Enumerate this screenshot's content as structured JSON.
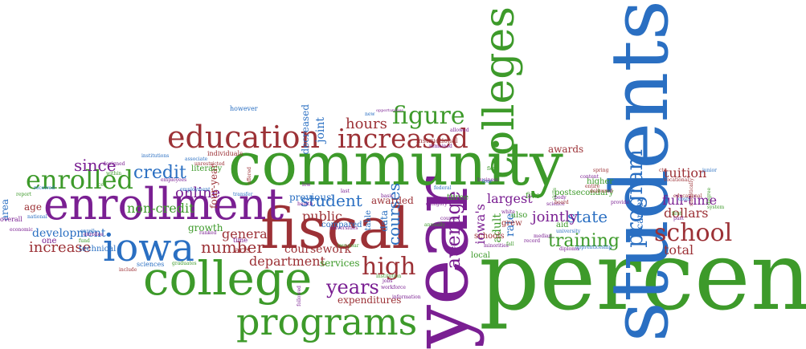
{
  "palette": {
    "green": "#3d9a2a",
    "purple": "#7a1f92",
    "blue": "#2a6fc2",
    "red": "#9c3136",
    "light_green": "#6bb04a",
    "light_purple": "#a05cb8",
    "light_blue": "#5e9bd6",
    "light_red": "#c06a6e"
  },
  "words": [
    {
      "text": "percent",
      "color": "green"
    },
    {
      "text": "students",
      "color": "blue"
    },
    {
      "text": "year",
      "color": "purple"
    },
    {
      "text": "community",
      "color": "green"
    },
    {
      "text": "fiscal",
      "color": "red"
    },
    {
      "text": "enrollment",
      "color": "purple"
    },
    {
      "text": "college",
      "color": "green"
    },
    {
      "text": "colleges",
      "color": "green"
    },
    {
      "text": "iowa",
      "color": "blue"
    },
    {
      "text": "programs",
      "color": "green"
    },
    {
      "text": "education",
      "color": "red"
    },
    {
      "text": "increased",
      "color": "red"
    },
    {
      "text": "enrolled",
      "color": "green"
    },
    {
      "text": "figure",
      "color": "green"
    },
    {
      "text": "school",
      "color": "red"
    },
    {
      "text": "high",
      "color": "red"
    },
    {
      "text": "program",
      "color": "blue"
    },
    {
      "text": "years",
      "color": "purple"
    },
    {
      "text": "average",
      "color": "purple"
    },
    {
      "text": "credit",
      "color": "blue"
    },
    {
      "text": "training",
      "color": "green"
    },
    {
      "text": "since",
      "color": "purple"
    },
    {
      "text": "student",
      "color": "blue"
    },
    {
      "text": "state",
      "color": "blue"
    },
    {
      "text": "number",
      "color": "red"
    },
    {
      "text": "hours",
      "color": "red"
    },
    {
      "text": "increase",
      "color": "red"
    },
    {
      "text": "online",
      "color": "purple"
    },
    {
      "text": "courses",
      "color": "blue"
    },
    {
      "text": "jointly",
      "color": "purple"
    },
    {
      "text": "department",
      "color": "red"
    },
    {
      "text": "public",
      "color": "red"
    },
    {
      "text": "dollars",
      "color": "red"
    },
    {
      "text": "total",
      "color": "red"
    },
    {
      "text": "tuition",
      "color": "red"
    },
    {
      "text": "full-time",
      "color": "purple"
    },
    {
      "text": "career",
      "color": "blue"
    },
    {
      "text": "joint",
      "color": "blue"
    },
    {
      "text": "largest",
      "color": "purple"
    },
    {
      "text": "iowa's",
      "color": "purple"
    },
    {
      "text": "rate",
      "color": "blue"
    },
    {
      "text": "adult",
      "color": "green"
    },
    {
      "text": "non-credit",
      "color": "green"
    },
    {
      "text": "general",
      "color": "red"
    },
    {
      "text": "development",
      "color": "blue"
    },
    {
      "text": "age",
      "color": "red"
    },
    {
      "text": "growth",
      "color": "green"
    },
    {
      "text": "decreased",
      "color": "blue"
    },
    {
      "text": "coursework",
      "color": "red"
    },
    {
      "text": "previous",
      "color": "blue"
    },
    {
      "text": "awarded",
      "color": "red"
    },
    {
      "text": "compared",
      "color": "blue"
    },
    {
      "text": "services",
      "color": "green"
    },
    {
      "text": "expenditures",
      "color": "red"
    },
    {
      "text": "awards",
      "color": "red"
    },
    {
      "text": "four-year",
      "color": "red"
    },
    {
      "text": "postsecondary",
      "color": "green"
    },
    {
      "text": "schools",
      "color": "red"
    },
    {
      "text": "technical",
      "color": "blue"
    },
    {
      "text": "literacy",
      "color": "green"
    },
    {
      "text": "however",
      "color": "blue"
    },
    {
      "text": "data",
      "color": "blue"
    },
    {
      "text": "table",
      "color": "blue"
    },
    {
      "text": "area",
      "color": "blue"
    },
    {
      "text": "one",
      "color": "purple"
    },
    {
      "text": "arts",
      "color": "red"
    },
    {
      "text": "time",
      "color": "purple"
    },
    {
      "text": "per",
      "color": "purple"
    },
    {
      "text": "also",
      "color": "green"
    },
    {
      "text": "grew",
      "color": "red"
    },
    {
      "text": "aid",
      "color": "green"
    },
    {
      "text": "local",
      "color": "green"
    },
    {
      "text": "three",
      "color": "green"
    },
    {
      "text": "higher",
      "color": "green"
    },
    {
      "text": "five",
      "color": "green"
    },
    {
      "text": "sciences",
      "color": "blue"
    },
    {
      "text": "overall",
      "color": "purple"
    },
    {
      "text": "employees",
      "color": "purple"
    },
    {
      "text": "employment",
      "color": "blue"
    },
    {
      "text": "universities",
      "color": "purple"
    },
    {
      "text": "institutions",
      "color": "blue"
    },
    {
      "text": "instructional",
      "color": "red"
    },
    {
      "text": "vocational",
      "color": "red"
    },
    {
      "text": "annually",
      "color": "green"
    },
    {
      "text": "national",
      "color": "blue"
    },
    {
      "text": "report",
      "color": "green"
    },
    {
      "text": "fund",
      "color": "green"
    },
    {
      "text": "enroll",
      "color": "blue"
    },
    {
      "text": "designed",
      "color": "purple"
    },
    {
      "text": "within",
      "color": "green"
    },
    {
      "text": "include",
      "color": "red"
    },
    {
      "text": "science",
      "color": "purple"
    },
    {
      "text": "university",
      "color": "blue"
    },
    {
      "text": "median",
      "color": "purple"
    },
    {
      "text": "federal",
      "color": "blue"
    },
    {
      "text": "skills",
      "color": "green"
    },
    {
      "text": "jobs",
      "color": "purple"
    },
    {
      "text": "workforce",
      "color": "purple"
    },
    {
      "text": "information",
      "color": "purple"
    },
    {
      "text": "followed",
      "color": "purple"
    },
    {
      "text": "institution",
      "color": "green"
    },
    {
      "text": "two-year",
      "color": "green"
    },
    {
      "text": "individuals",
      "color": "red"
    },
    {
      "text": "cte",
      "color": "red"
    },
    {
      "text": "junior",
      "color": "blue"
    },
    {
      "text": "delivered",
      "color": "red"
    },
    {
      "text": "apprenticeship",
      "color": "blue"
    },
    {
      "text": "remained",
      "color": "purple"
    },
    {
      "text": "minorities",
      "color": "purple"
    },
    {
      "text": "degree",
      "color": "green"
    },
    {
      "text": "system",
      "color": "green"
    },
    {
      "text": "diploma",
      "color": "purple"
    },
    {
      "text": "allowed",
      "color": "purple"
    },
    {
      "text": "business",
      "color": "purple"
    },
    {
      "text": "last",
      "color": "purple"
    },
    {
      "text": "category",
      "color": "purple"
    },
    {
      "text": "course",
      "color": "purple"
    },
    {
      "text": "offered",
      "color": "red"
    },
    {
      "text": "transfer",
      "color": "blue"
    },
    {
      "text": "associate",
      "color": "blue"
    },
    {
      "text": "unrestricted",
      "color": "red"
    },
    {
      "text": "enrollee",
      "color": "purple"
    },
    {
      "text": "economic",
      "color": "purple"
    },
    {
      "text": "received",
      "color": "blue"
    },
    {
      "text": "new",
      "color": "blue"
    },
    {
      "text": "ranked",
      "color": "purple"
    },
    {
      "text": "four",
      "color": "blue"
    },
    {
      "text": "entire",
      "color": "red"
    },
    {
      "text": "past",
      "color": "purple"
    },
    {
      "text": "costs",
      "color": "blue"
    },
    {
      "text": "first",
      "color": "green"
    },
    {
      "text": "body",
      "color": "purple"
    },
    {
      "text": "basic",
      "color": "purple"
    },
    {
      "text": "board",
      "color": "red"
    },
    {
      "text": "provide",
      "color": "purple"
    },
    {
      "text": "health",
      "color": "purple"
    },
    {
      "text": "record",
      "color": "purple"
    },
    {
      "text": "low",
      "color": "purple"
    },
    {
      "text": "spring",
      "color": "red"
    },
    {
      "text": "flex",
      "color": "green"
    },
    {
      "text": "cell",
      "color": "green"
    },
    {
      "text": "fall",
      "color": "green"
    },
    {
      "text": "white",
      "color": "purple"
    },
    {
      "text": "graduates",
      "color": "green"
    },
    {
      "text": "content",
      "color": "purple"
    },
    {
      "text": "opportunities",
      "color": "purple"
    },
    {
      "text": "statistically",
      "color": "red"
    },
    {
      "text": "educational",
      "color": "red"
    },
    {
      "text": "dual",
      "color": "red"
    }
  ]
}
